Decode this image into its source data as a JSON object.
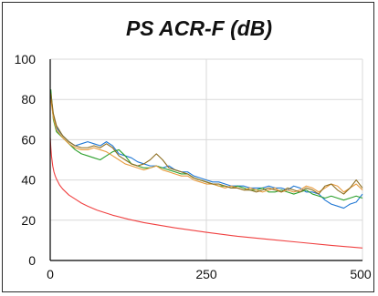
{
  "chart_data": {
    "type": "line",
    "title": "PS ACR-F (dB)",
    "xlabel": "",
    "ylabel": "",
    "xlim": [
      0,
      500
    ],
    "ylim": [
      0,
      100
    ],
    "x_ticks": [
      0,
      250,
      500
    ],
    "y_ticks": [
      0,
      20,
      40,
      60,
      80,
      100
    ],
    "grid": true,
    "legend": "none",
    "series": [
      {
        "color": "#1f77d4",
        "points": [
          [
            1,
            82
          ],
          [
            5,
            72
          ],
          [
            10,
            66
          ],
          [
            20,
            62
          ],
          [
            30,
            59
          ],
          [
            40,
            57
          ],
          [
            50,
            58
          ],
          [
            60,
            59
          ],
          [
            70,
            58
          ],
          [
            80,
            57
          ],
          [
            90,
            59
          ],
          [
            100,
            57
          ],
          [
            110,
            53
          ],
          [
            120,
            52
          ],
          [
            130,
            51
          ],
          [
            140,
            49
          ],
          [
            150,
            48
          ],
          [
            160,
            47
          ],
          [
            170,
            47
          ],
          [
            180,
            46
          ],
          [
            190,
            47
          ],
          [
            200,
            45
          ],
          [
            210,
            44
          ],
          [
            220,
            44
          ],
          [
            230,
            42
          ],
          [
            240,
            41
          ],
          [
            250,
            40
          ],
          [
            260,
            39
          ],
          [
            270,
            39
          ],
          [
            280,
            38
          ],
          [
            290,
            37
          ],
          [
            300,
            37
          ],
          [
            310,
            37
          ],
          [
            320,
            36
          ],
          [
            330,
            36
          ],
          [
            340,
            36
          ],
          [
            350,
            37
          ],
          [
            360,
            36
          ],
          [
            370,
            36
          ],
          [
            380,
            35
          ],
          [
            390,
            37
          ],
          [
            400,
            36
          ],
          [
            410,
            34
          ],
          [
            420,
            34
          ],
          [
            430,
            33
          ],
          [
            440,
            30
          ],
          [
            450,
            28
          ],
          [
            460,
            27
          ],
          [
            470,
            26
          ],
          [
            480,
            28
          ],
          [
            490,
            29
          ],
          [
            500,
            33
          ]
        ]
      },
      {
        "color": "#2ca02c",
        "points": [
          [
            1,
            85
          ],
          [
            5,
            70
          ],
          [
            10,
            64
          ],
          [
            20,
            61
          ],
          [
            30,
            58
          ],
          [
            40,
            55
          ],
          [
            50,
            53
          ],
          [
            60,
            52
          ],
          [
            70,
            51
          ],
          [
            80,
            50
          ],
          [
            90,
            52
          ],
          [
            100,
            54
          ],
          [
            110,
            55
          ],
          [
            120,
            52
          ],
          [
            130,
            48
          ],
          [
            140,
            47
          ],
          [
            150,
            46
          ],
          [
            160,
            46
          ],
          [
            170,
            47
          ],
          [
            180,
            46
          ],
          [
            190,
            45
          ],
          [
            200,
            44
          ],
          [
            210,
            43
          ],
          [
            220,
            43
          ],
          [
            230,
            41
          ],
          [
            240,
            40
          ],
          [
            250,
            39
          ],
          [
            260,
            38
          ],
          [
            270,
            37
          ],
          [
            280,
            37
          ],
          [
            290,
            36
          ],
          [
            300,
            37
          ],
          [
            310,
            36
          ],
          [
            320,
            35
          ],
          [
            330,
            35
          ],
          [
            340,
            36
          ],
          [
            350,
            34
          ],
          [
            360,
            34
          ],
          [
            370,
            35
          ],
          [
            380,
            34
          ],
          [
            390,
            33
          ],
          [
            400,
            34
          ],
          [
            410,
            35
          ],
          [
            420,
            33
          ],
          [
            430,
            32
          ],
          [
            440,
            31
          ],
          [
            450,
            32
          ],
          [
            460,
            31
          ],
          [
            470,
            30
          ],
          [
            480,
            31
          ],
          [
            490,
            32
          ],
          [
            500,
            31
          ]
        ]
      },
      {
        "color": "#e89a3c",
        "points": [
          [
            1,
            80
          ],
          [
            5,
            71
          ],
          [
            10,
            65
          ],
          [
            20,
            61
          ],
          [
            30,
            58
          ],
          [
            40,
            56
          ],
          [
            50,
            55
          ],
          [
            60,
            55
          ],
          [
            70,
            56
          ],
          [
            80,
            55
          ],
          [
            90,
            54
          ],
          [
            100,
            52
          ],
          [
            110,
            50
          ],
          [
            120,
            48
          ],
          [
            130,
            47
          ],
          [
            140,
            46
          ],
          [
            150,
            45
          ],
          [
            160,
            46
          ],
          [
            170,
            47
          ],
          [
            180,
            45
          ],
          [
            190,
            44
          ],
          [
            200,
            43
          ],
          [
            210,
            42
          ],
          [
            220,
            42
          ],
          [
            230,
            40
          ],
          [
            240,
            39
          ],
          [
            250,
            38
          ],
          [
            260,
            38
          ],
          [
            270,
            37
          ],
          [
            280,
            36
          ],
          [
            290,
            37
          ],
          [
            300,
            36
          ],
          [
            310,
            35
          ],
          [
            320,
            36
          ],
          [
            330,
            35
          ],
          [
            340,
            34
          ],
          [
            350,
            35
          ],
          [
            360,
            36
          ],
          [
            370,
            34
          ],
          [
            380,
            35
          ],
          [
            390,
            34
          ],
          [
            400,
            35
          ],
          [
            410,
            37
          ],
          [
            420,
            36
          ],
          [
            430,
            34
          ],
          [
            440,
            36
          ],
          [
            450,
            38
          ],
          [
            460,
            37
          ],
          [
            470,
            34
          ],
          [
            480,
            36
          ],
          [
            490,
            38
          ],
          [
            500,
            35
          ]
        ]
      },
      {
        "color": "#8c6d1f",
        "points": [
          [
            1,
            83
          ],
          [
            5,
            73
          ],
          [
            10,
            67
          ],
          [
            20,
            62
          ],
          [
            30,
            59
          ],
          [
            40,
            57
          ],
          [
            50,
            56
          ],
          [
            60,
            56
          ],
          [
            70,
            57
          ],
          [
            80,
            56
          ],
          [
            90,
            58
          ],
          [
            100,
            56
          ],
          [
            110,
            52
          ],
          [
            120,
            50
          ],
          [
            130,
            48
          ],
          [
            140,
            47
          ],
          [
            150,
            48
          ],
          [
            160,
            50
          ],
          [
            170,
            53
          ],
          [
            180,
            50
          ],
          [
            190,
            46
          ],
          [
            200,
            45
          ],
          [
            210,
            44
          ],
          [
            220,
            43
          ],
          [
            230,
            41
          ],
          [
            240,
            40
          ],
          [
            250,
            39
          ],
          [
            260,
            38
          ],
          [
            270,
            38
          ],
          [
            280,
            37
          ],
          [
            290,
            36
          ],
          [
            300,
            36
          ],
          [
            310,
            35
          ],
          [
            320,
            35
          ],
          [
            330,
            34
          ],
          [
            340,
            35
          ],
          [
            350,
            36
          ],
          [
            360,
            35
          ],
          [
            370,
            34
          ],
          [
            380,
            36
          ],
          [
            390,
            35
          ],
          [
            400,
            34
          ],
          [
            410,
            36
          ],
          [
            420,
            35
          ],
          [
            430,
            33
          ],
          [
            440,
            37
          ],
          [
            450,
            38
          ],
          [
            460,
            35
          ],
          [
            470,
            33
          ],
          [
            480,
            36
          ],
          [
            490,
            40
          ],
          [
            500,
            36
          ]
        ]
      },
      {
        "color": "#f04040",
        "points": [
          [
            0,
            61
          ],
          [
            1,
            56
          ],
          [
            2,
            52
          ],
          [
            4,
            47
          ],
          [
            6,
            44
          ],
          [
            8,
            42
          ],
          [
            10,
            40.5
          ],
          [
            15,
            37.5
          ],
          [
            20,
            35.5
          ],
          [
            30,
            32.5
          ],
          [
            40,
            30.5
          ],
          [
            50,
            28.5
          ],
          [
            60,
            27
          ],
          [
            75,
            25
          ],
          [
            100,
            22.5
          ],
          [
            125,
            20.5
          ],
          [
            150,
            18.8
          ],
          [
            175,
            17.5
          ],
          [
            200,
            16.2
          ],
          [
            250,
            14
          ],
          [
            300,
            12
          ],
          [
            350,
            10.5
          ],
          [
            400,
            9
          ],
          [
            450,
            7.5
          ],
          [
            500,
            6.2
          ]
        ]
      }
    ]
  }
}
